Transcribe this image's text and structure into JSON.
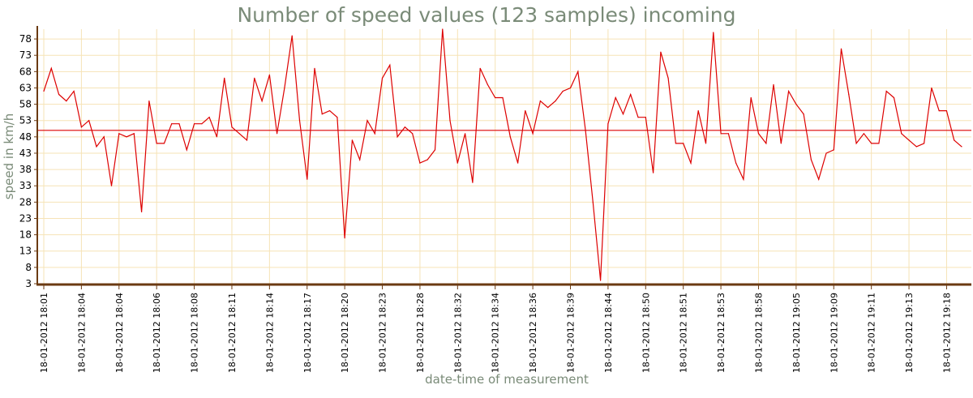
{
  "chart_data": {
    "type": "line",
    "title": "Number of speed values (123 samples) incoming",
    "xlabel": "date-time of measurement",
    "ylabel": "speed in km/h",
    "ylim": [
      3,
      81
    ],
    "yticks": [
      3,
      8,
      13,
      18,
      23,
      28,
      33,
      38,
      43,
      48,
      53,
      58,
      63,
      68,
      73,
      78
    ],
    "x_tick_labels": [
      "18-01-2012 18:01",
      "18-01-2012 18:04",
      "18-01-2012 18:04",
      "18-01-2012 18:06",
      "18-01-2012 18:08",
      "18-01-2012 18:11",
      "18-01-2012 18:14",
      "18-01-2012 18:17",
      "18-01-2012 18:20",
      "18-01-2012 18:23",
      "18-01-2012 18:28",
      "18-01-2012 18:32",
      "18-01-2012 18:34",
      "18-01-2012 18:36",
      "18-01-2012 18:39",
      "18-01-2012 18:44",
      "18-01-2012 18:50",
      "18-01-2012 18:51",
      "18-01-2012 18:53",
      "18-01-2012 18:58",
      "18-01-2012 19:05",
      "18-01-2012 19:09",
      "18-01-2012 19:11",
      "18-01-2012 19:13",
      "18-01-2012 19:18"
    ],
    "tick_every": 5,
    "reference_line": {
      "value": 50,
      "color": "#dd0000"
    },
    "series": [
      {
        "name": "speed",
        "color": "#dd0000",
        "values": [
          62,
          69,
          61,
          59,
          62,
          51,
          53,
          45,
          48,
          33,
          49,
          48,
          49,
          25,
          59,
          46,
          46,
          52,
          52,
          44,
          52,
          52,
          54,
          48,
          66,
          51,
          49,
          47,
          66,
          59,
          67,
          49,
          63,
          79,
          53,
          35,
          69,
          55,
          56,
          54,
          17,
          47,
          41,
          53,
          49,
          66,
          70,
          48,
          51,
          49,
          40,
          41,
          44,
          81,
          53,
          40,
          49,
          34,
          69,
          64,
          60,
          60,
          48,
          40,
          56,
          49,
          59,
          57,
          59,
          62,
          63,
          68,
          50,
          28,
          4,
          52,
          60,
          55,
          61,
          54,
          54,
          37,
          74,
          66,
          46,
          46,
          40,
          56,
          46,
          80,
          49,
          49,
          40,
          35,
          60,
          49,
          46,
          64,
          46,
          62,
          58,
          55,
          41,
          35,
          43,
          44,
          75,
          61,
          46,
          49,
          46,
          46,
          62,
          60,
          49,
          47,
          45,
          46,
          63,
          56,
          56,
          47,
          45
        ]
      }
    ]
  },
  "colors": {
    "grid": "#f6e3b6",
    "axis": "#6b3a12",
    "line": "#dd0000",
    "title": "#7a8b78"
  }
}
